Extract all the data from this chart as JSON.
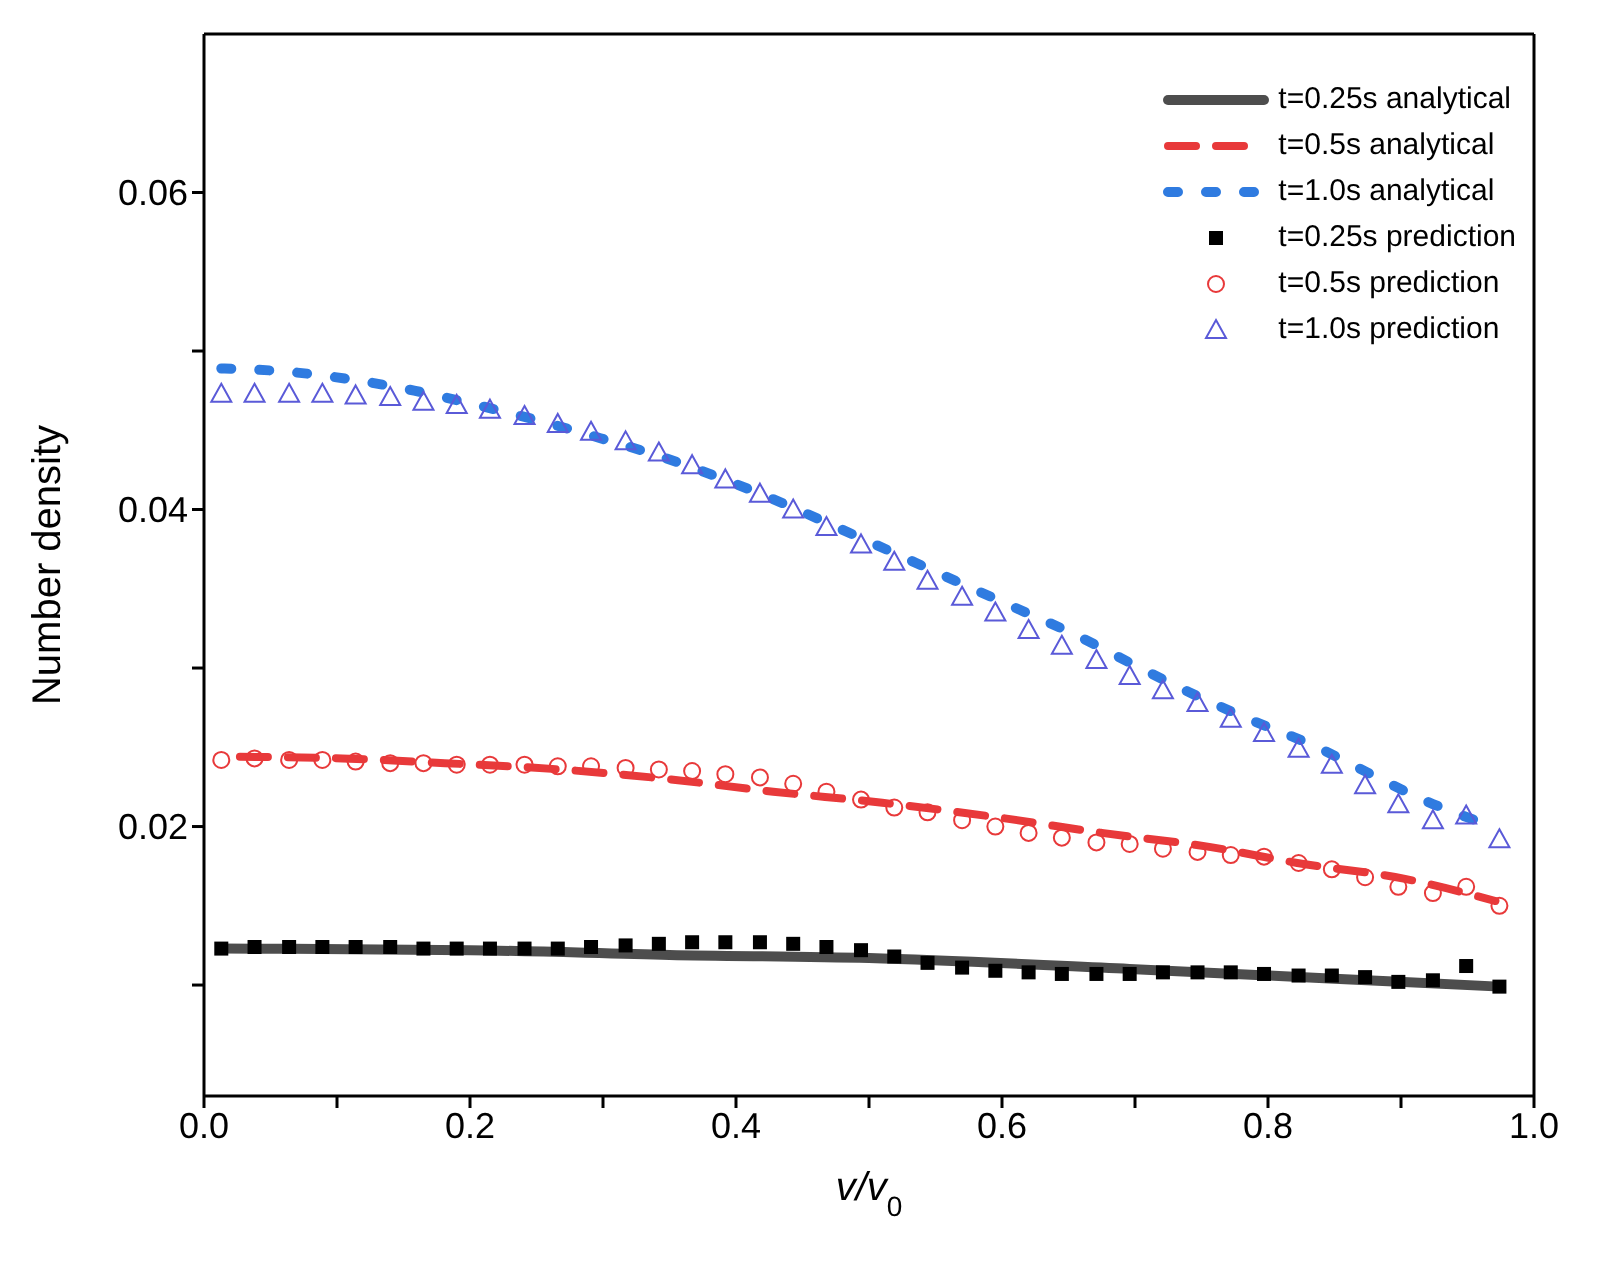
{
  "chart_data": {
    "type": "scatter",
    "xlabel": "v/v$_{0}$",
    "ylabel": "Number density",
    "xlim": [
      0,
      1
    ],
    "ylim": [
      0.003,
      0.07
    ],
    "xticks": [
      {
        "value": 0,
        "label": "0.0"
      },
      {
        "value": 0.1,
        "label": null
      },
      0.2,
      {
        "value": 0.3,
        "label": null
      },
      0.4,
      {
        "value": 0.5,
        "label": null
      },
      0.6,
      {
        "value": 0.7,
        "label": null
      },
      0.8,
      {
        "value": 0.9,
        "label": null
      },
      {
        "value": 1,
        "label": "1.0"
      }
    ],
    "yticks": [
      {
        "value": 0.01,
        "label": null
      },
      0.02,
      {
        "value": 0.03,
        "label": null
      },
      0.04,
      {
        "value": 0.05,
        "label": null
      },
      0.06
    ],
    "grid": false,
    "legend": "top right",
    "x": [
      0.013,
      0.038,
      0.064,
      0.089,
      0.114,
      0.14,
      0.165,
      0.19,
      0.215,
      0.241,
      0.266,
      0.291,
      0.317,
      0.342,
      0.367,
      0.392,
      0.418,
      0.443,
      0.468,
      0.494,
      0.519,
      0.544,
      0.57,
      0.595,
      0.62,
      0.645,
      0.671,
      0.696,
      0.721,
      0.747,
      0.772,
      0.797,
      0.823,
      0.848,
      0.873,
      0.898,
      0.924,
      0.949,
      0.974
    ],
    "series": [
      {
        "name": "t=0.25s analytical",
        "type": "line",
        "line_style": "solid",
        "color": "#4d4d4d",
        "x": [
          0.013,
          0.2,
          0.35,
          0.5,
          0.7,
          0.85,
          0.974
        ],
        "values": [
          0.0123,
          0.0122,
          0.0119,
          0.0117,
          0.011,
          0.0104,
          0.0099
        ]
      },
      {
        "name": "t=0.5s analytical",
        "type": "line",
        "line_style": "dashed",
        "color": "#e8393a",
        "x": [
          0.027,
          0.104,
          0.181,
          0.268,
          0.348,
          0.428,
          0.51,
          0.595,
          0.675,
          0.757,
          0.822,
          0.903,
          0.971
        ],
        "values": [
          0.0244,
          0.0243,
          0.024,
          0.0236,
          0.023,
          0.0222,
          0.0215,
          0.0206,
          0.0196,
          0.0187,
          0.0177,
          0.0167,
          0.0153
        ]
      },
      {
        "name": "t=1.0s analytical",
        "type": "line",
        "line_style": "dotted",
        "color": "#2f7be0",
        "x": [
          0.013,
          0.062,
          0.111,
          0.158,
          0.205,
          0.252,
          0.298,
          0.345,
          0.391,
          0.435,
          0.478,
          0.523,
          0.565,
          0.61,
          0.655,
          0.697,
          0.74,
          0.785,
          0.837,
          0.875,
          0.919,
          0.966
        ],
        "values": [
          0.0489,
          0.0487,
          0.0482,
          0.0475,
          0.0466,
          0.0456,
          0.0445,
          0.0433,
          0.0419,
          0.0404,
          0.0388,
          0.0371,
          0.0355,
          0.0338,
          0.0321,
          0.0303,
          0.0285,
          0.0268,
          0.025,
          0.0234,
          0.0216,
          0.0201
        ]
      },
      {
        "name": "t=0.25s prediction",
        "marker": "square",
        "color": "#000000",
        "values": [
          0.0123,
          0.0124,
          0.0124,
          0.0124,
          0.0124,
          0.0124,
          0.0123,
          0.0123,
          0.0123,
          0.0123,
          0.0123,
          0.0124,
          0.0125,
          0.0126,
          0.0127,
          0.0127,
          0.0127,
          0.0126,
          0.0124,
          0.0122,
          0.0118,
          0.0114,
          0.0111,
          0.0109,
          0.0108,
          0.0107,
          0.0107,
          0.0107,
          0.0108,
          0.0108,
          0.0108,
          0.0107,
          0.0106,
          0.0106,
          0.0105,
          0.0102,
          0.0103,
          0.0112,
          0.0099
        ]
      },
      {
        "name": "t=0.5s prediction",
        "marker": "circle",
        "color": "#e8393a",
        "values": [
          0.0242,
          0.0243,
          0.0242,
          0.0242,
          0.0241,
          0.024,
          0.024,
          0.0239,
          0.0239,
          0.0239,
          0.0238,
          0.0238,
          0.0237,
          0.0236,
          0.0235,
          0.0233,
          0.0231,
          0.0227,
          0.0222,
          0.0217,
          0.0212,
          0.0209,
          0.0204,
          0.02,
          0.0196,
          0.0193,
          0.019,
          0.0189,
          0.0186,
          0.0184,
          0.0182,
          0.0181,
          0.0177,
          0.0173,
          0.0168,
          0.0162,
          0.0158,
          0.0162,
          0.015
        ]
      },
      {
        "name": "t=1.0s prediction",
        "marker": "triangle",
        "color": "#5a5ad8",
        "values": [
          0.0473,
          0.0473,
          0.0473,
          0.0473,
          0.0472,
          0.0471,
          0.0468,
          0.0466,
          0.0463,
          0.0459,
          0.0454,
          0.0449,
          0.0443,
          0.0436,
          0.0428,
          0.0419,
          0.041,
          0.04,
          0.0389,
          0.0378,
          0.0367,
          0.0355,
          0.0345,
          0.0335,
          0.0324,
          0.0314,
          0.0305,
          0.0295,
          0.0286,
          0.0278,
          0.0268,
          0.0259,
          0.0249,
          0.0239,
          0.0226,
          0.0214,
          0.0204,
          0.0207,
          0.0192
        ]
      }
    ]
  }
}
